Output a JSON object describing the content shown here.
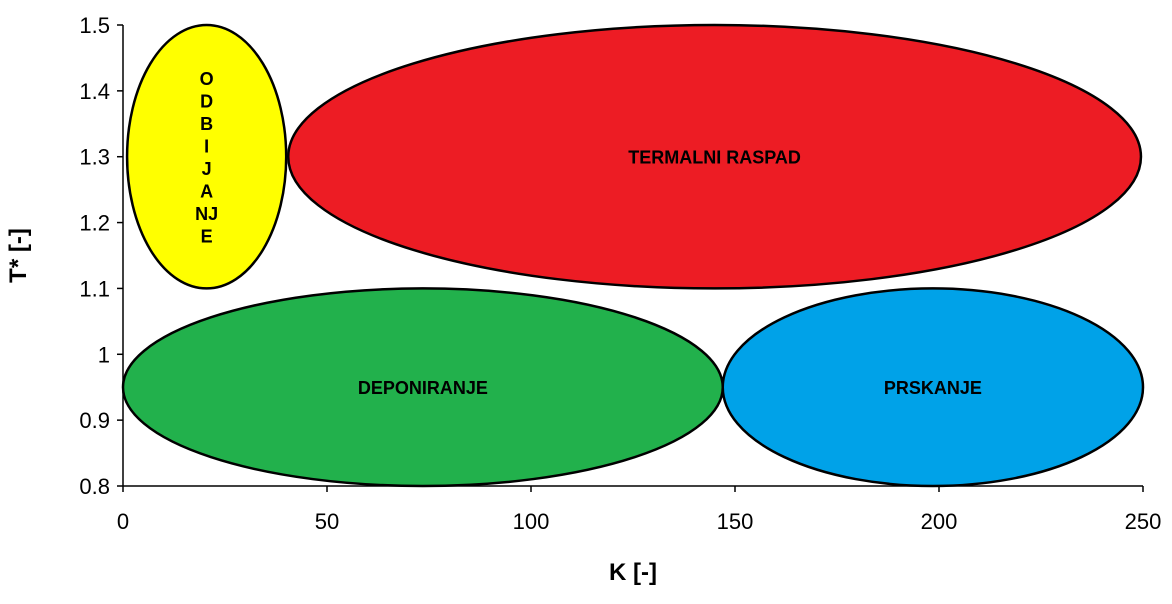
{
  "chart_data": {
    "type": "scatter",
    "title": "",
    "xlabel": "K [-]",
    "ylabel": "T* [-]",
    "xlim": [
      0,
      250
    ],
    "ylim": [
      0.8,
      1.5
    ],
    "x_ticks": [
      0,
      50,
      100,
      150,
      200,
      250
    ],
    "y_ticks": [
      0.8,
      0.9,
      1,
      1.1,
      1.2,
      1.3,
      1.4,
      1.5
    ],
    "y_tick_labels": [
      "0.8",
      "0.9",
      "1",
      "1.1",
      "1.2",
      "1.3",
      "1.4",
      "1.5"
    ],
    "grid": false,
    "regions": [
      {
        "id": "odbijanje",
        "label": "ODBIJANJE",
        "label_orientation": "stacked",
        "label_lines": [
          "O",
          "D",
          "B",
          "I",
          "J",
          "A",
          "NJ",
          "E"
        ],
        "color": "#ffff00",
        "x_center": 20.5,
        "y_center": 1.3,
        "x_half_width": 19.5,
        "y_half_height": 0.2
      },
      {
        "id": "termalni-raspad",
        "label": "TERMALNI RASPAD",
        "label_orientation": "horizontal",
        "color": "#ed1c24",
        "x_center": 145,
        "y_center": 1.3,
        "x_half_width": 104.5,
        "y_half_height": 0.2
      },
      {
        "id": "deponiranje",
        "label": "DEPONIRANJE",
        "label_orientation": "horizontal",
        "color": "#22b14c",
        "x_center": 73.5,
        "y_center": 0.95,
        "x_half_width": 73.5,
        "y_half_height": 0.15
      },
      {
        "id": "prskanje",
        "label": "PRSKANJE",
        "label_orientation": "horizontal",
        "color": "#00a2e8",
        "x_center": 198.5,
        "y_center": 0.95,
        "x_half_width": 51.5,
        "y_half_height": 0.15
      }
    ]
  }
}
